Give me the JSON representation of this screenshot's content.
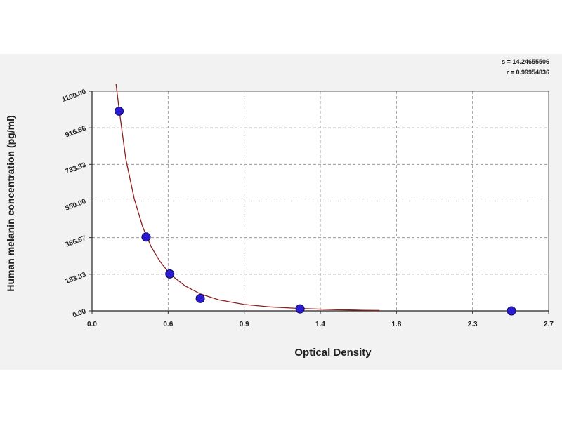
{
  "chart_data": {
    "type": "scatter",
    "title": "",
    "xlabel": "Optical Density",
    "ylabel": "Human melanin concentration (pg/ml)",
    "xlim": [
      0.0,
      2.7
    ],
    "ylim": [
      0.0,
      1100.0
    ],
    "x_ticks": [
      "0.0",
      "0.6",
      "0.9",
      "1.4",
      "1.8",
      "2.3",
      "2.7"
    ],
    "y_ticks": [
      "0.00",
      "183.33",
      "366.67",
      "550.00",
      "733.33",
      "916.66",
      "1100.00"
    ],
    "grid": true,
    "stats": {
      "s": "s = 14.24655506",
      "r": "r = 0.99954836"
    },
    "points": [
      {
        "x": 0.16,
        "y": 1000.0
      },
      {
        "x": 0.32,
        "y": 370.0
      },
      {
        "x": 0.46,
        "y": 185.0
      },
      {
        "x": 0.64,
        "y": 62.0
      },
      {
        "x": 1.23,
        "y": 10.0
      },
      {
        "x": 2.48,
        "y": 0.0
      }
    ],
    "fit_curve": [
      {
        "x": 0.14,
        "y": 1150.0
      },
      {
        "x": 0.16,
        "y": 1010.0
      },
      {
        "x": 0.2,
        "y": 760.0
      },
      {
        "x": 0.25,
        "y": 560.0
      },
      {
        "x": 0.3,
        "y": 420.0
      },
      {
        "x": 0.35,
        "y": 320.0
      },
      {
        "x": 0.4,
        "y": 250.0
      },
      {
        "x": 0.46,
        "y": 185.0
      },
      {
        "x": 0.55,
        "y": 125.0
      },
      {
        "x": 0.64,
        "y": 85.0
      },
      {
        "x": 0.75,
        "y": 55.0
      },
      {
        "x": 0.9,
        "y": 32.0
      },
      {
        "x": 1.05,
        "y": 20.0
      },
      {
        "x": 1.23,
        "y": 12.0
      },
      {
        "x": 1.45,
        "y": 6.0
      },
      {
        "x": 1.6,
        "y": 3.0
      },
      {
        "x": 1.7,
        "y": 2.0
      }
    ],
    "colors": {
      "point_fill": "#2a1ad0",
      "point_stroke": "#0c0a5a",
      "curve": "#8b2020",
      "grid": "#888888",
      "panel_bg": "#f2f2f2",
      "plot_bg": "#ffffff"
    }
  }
}
